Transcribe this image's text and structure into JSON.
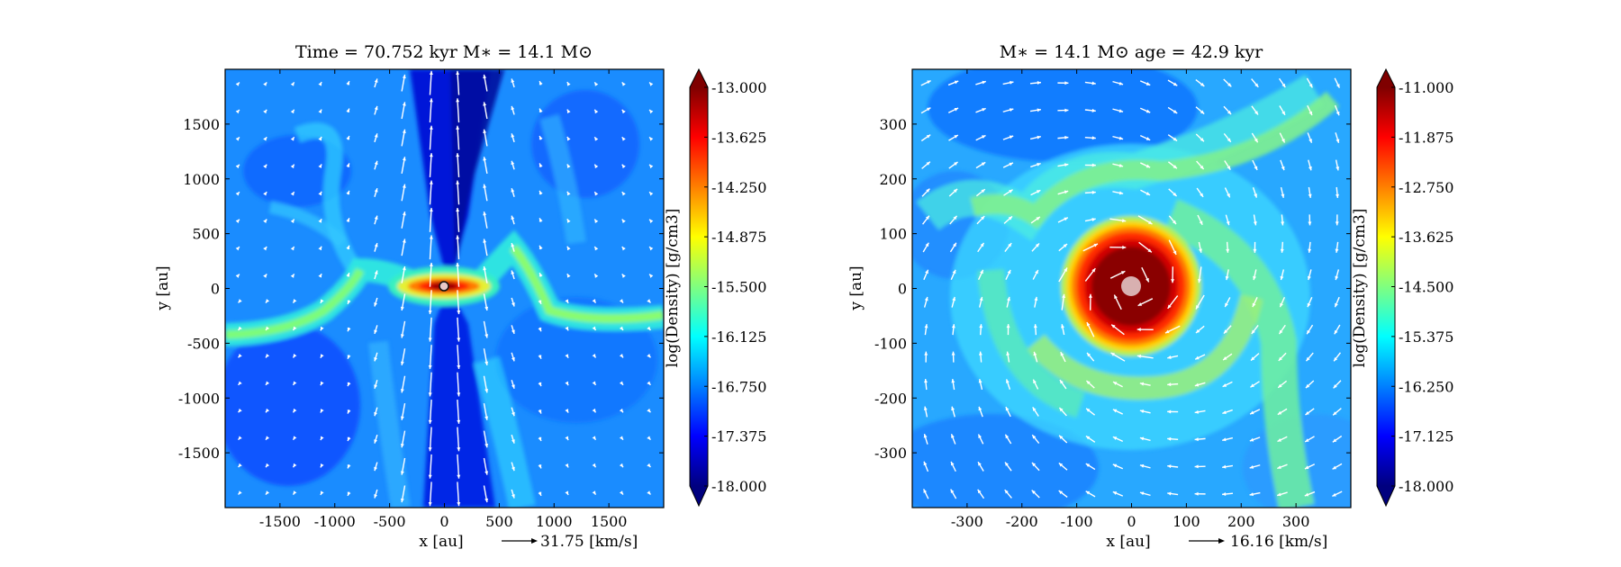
{
  "chart_data": [
    {
      "type": "heatmap",
      "title": "Time = 70.752 kyr    M$_*$ = 14.1 M$_\\odot$",
      "title_display": "Time = 70.752 kyr    M∗ = 14.1 M⊙",
      "xlabel": "x [au]",
      "ylabel": "y [au]",
      "xlim": [
        -2000,
        2000
      ],
      "ylim": [
        -2000,
        2000
      ],
      "xticks": [
        -1500,
        -1000,
        -500,
        0,
        500,
        1000,
        1500
      ],
      "xtick_labels": [
        "-1500",
        "-1000",
        "-500",
        "0",
        "500",
        "1000",
        "1500"
      ],
      "yticks": [
        -1500,
        -1000,
        -500,
        0,
        500,
        1000,
        1500
      ],
      "ytick_labels": [
        "-1500",
        "-1000",
        "-500",
        "0",
        "500",
        "1000",
        "1500"
      ],
      "colorbar": {
        "label": "log(Density) [g/cm3]",
        "range": [
          -18.0,
          -13.0
        ],
        "ticks": [
          -13.0,
          -13.625,
          -14.25,
          -14.875,
          -15.5,
          -16.125,
          -16.75,
          -17.375,
          -18.0
        ],
        "tick_labels": [
          "-13.000",
          "-13.625",
          "-14.250",
          "-14.875",
          "-15.500",
          "-16.125",
          "-16.750",
          "-17.375",
          "-18.000"
        ],
        "colormap": "jet"
      },
      "velocity_key": "31.75 [km/s]",
      "structure": "edge-on view: dense disk/filament along y≈0 with bipolar low-density outflow cavities along x≈0 and vertical velocity vectors",
      "star_position": [
        0,
        0
      ]
    },
    {
      "type": "heatmap",
      "title": "M$_*$ = 14.1 M$_\\odot$    age = 42.9 kyr",
      "title_display": "M∗ = 14.1 M⊙          age = 42.9 kyr",
      "xlabel": "x [au]",
      "ylabel": "y [au]",
      "xlim": [
        -400,
        400
      ],
      "ylim": [
        -400,
        400
      ],
      "xticks": [
        -300,
        -200,
        -100,
        0,
        100,
        200,
        300
      ],
      "xtick_labels": [
        "-300",
        "-200",
        "-100",
        "0",
        "100",
        "200",
        "300"
      ],
      "yticks": [
        -300,
        -200,
        -100,
        0,
        100,
        200,
        300
      ],
      "ytick_labels": [
        "-300",
        "-200",
        "-100",
        "0",
        "100",
        "200",
        "300"
      ],
      "colorbar": {
        "label": "log(Density) [g/cm3]",
        "range": [
          -18.0,
          -11.0
        ],
        "ticks": [
          -11.0,
          -11.875,
          -12.75,
          -13.625,
          -14.5,
          -15.375,
          -16.25,
          -17.125,
          -18.0
        ],
        "tick_labels": [
          "-11.000",
          "-11.875",
          "-12.750",
          "-13.625",
          "-14.500",
          "-15.375",
          "-16.250",
          "-17.125",
          "-18.000"
        ],
        "colormap": "jet"
      },
      "velocity_key": "16.16 [km/s]",
      "structure": "face-on view: dense rotating disk of radius ~120 au around the star with spiral arms and swirling velocity vectors",
      "star_position": [
        0,
        0
      ]
    }
  ]
}
